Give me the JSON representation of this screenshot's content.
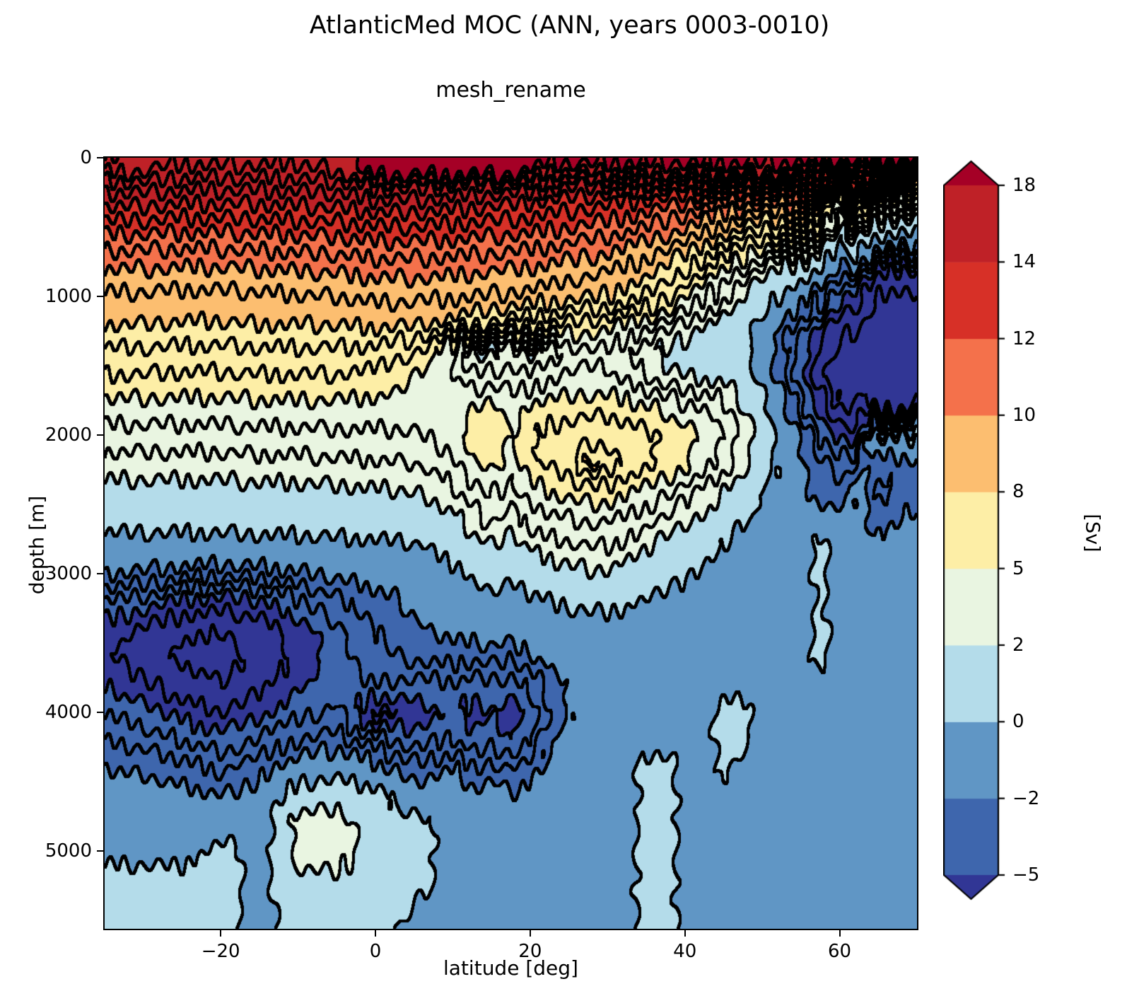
{
  "figure": {
    "title": "AtlanticMed MOC (ANN, years 0003-0010)",
    "subtitle": "mesh_rename",
    "background_color": "#ffffff"
  },
  "axes": {
    "x": {
      "label": "latitude [deg]",
      "min": -35,
      "max": 70,
      "tick_values": [
        -20,
        0,
        20,
        40,
        60
      ],
      "tick_labels": [
        "−20",
        "0",
        "20",
        "40",
        "60"
      ]
    },
    "y": {
      "label": "depth [m]",
      "min": 0,
      "max": 5560,
      "inverted": true,
      "tick_values": [
        0,
        1000,
        2000,
        3000,
        4000,
        5000
      ],
      "tick_labels": [
        "0",
        "1000",
        "2000",
        "3000",
        "4000",
        "5000"
      ]
    }
  },
  "colorbar": {
    "label": "[Sv]",
    "extend": "both",
    "levels": [
      -5,
      -2,
      0,
      2,
      5,
      8,
      10,
      12,
      14,
      18
    ],
    "tick_labels": [
      "−5",
      "−2",
      "0",
      "2",
      "5",
      "8",
      "10",
      "12",
      "14",
      "18"
    ],
    "band_colors": [
      "#3e66ad",
      "#6096c5",
      "#b4dcea",
      "#e9f5e1",
      "#fdeea6",
      "#fcbe70",
      "#f4714b",
      "#d73027",
      "#bf2127"
    ],
    "under_color": "#313695",
    "over_color": "#a50026",
    "outline_color": "#000000"
  },
  "chart_data": {
    "type": "heatmap",
    "subtype": "filled_contour",
    "title": "AtlanticMed MOC (ANN, years 0003-0010)",
    "subtitle": "mesh_rename",
    "xlabel": "latitude [deg]",
    "ylabel": "depth [m]",
    "units": "Sv",
    "xlim": [
      -35,
      70
    ],
    "ylim": [
      0,
      5560
    ],
    "fill_levels": [
      -5,
      -2,
      0,
      2,
      5,
      8,
      10,
      12,
      14,
      18
    ],
    "contour_line_levels": [
      -7,
      -6,
      -5,
      -4,
      -3,
      -2,
      0,
      2,
      3,
      4,
      5,
      6,
      7,
      8,
      9,
      10,
      11,
      12,
      13,
      14,
      15,
      16,
      17,
      18
    ],
    "contour_line_color": "#000000",
    "x_latitude": [
      -35,
      -30,
      -25,
      -20,
      -15,
      -10,
      -5,
      0,
      5,
      10,
      12.5,
      15,
      17.5,
      20,
      22.5,
      25,
      27.5,
      30,
      32.5,
      35,
      37.5,
      40,
      42.5,
      45,
      47.5,
      50,
      52.5,
      55,
      57.5,
      60,
      61.5,
      63,
      64.5,
      66,
      68,
      70
    ],
    "y_depth_m": [
      0,
      100,
      200,
      300,
      450,
      600,
      800,
      1000,
      1200,
      1400,
      1600,
      1800,
      2000,
      2200,
      2400,
      2600,
      2800,
      3000,
      3200,
      3400,
      3600,
      3800,
      4000,
      4200,
      4400,
      4600,
      4800,
      5000,
      5200,
      5560
    ],
    "values_sv": [
      [
        18.3,
        17.6,
        17.4,
        17.5,
        17.5,
        17.3,
        17.5,
        18.3,
        18.6,
        18.6,
        18.6,
        18.6,
        18.6,
        18.6,
        18.6,
        18.6,
        18.6,
        18.6,
        18.6,
        18.6,
        18.6,
        18.6,
        18.6,
        18.6,
        18.6,
        18.6,
        18.6,
        18.6,
        18.4,
        18.2,
        18.4,
        18.4,
        18.3,
        18.3,
        18.2,
        18.3
      ],
      [
        17,
        17,
        16.5,
        16.5,
        16.5,
        16.5,
        17,
        18.5,
        18.5,
        18.5,
        18.5,
        18.5,
        18.5,
        18,
        17,
        17,
        17,
        17,
        17,
        17,
        17,
        17,
        17,
        17,
        17,
        17,
        17,
        17,
        16,
        13,
        16,
        16,
        14,
        13.5,
        13,
        13.5
      ],
      [
        15.5,
        15.5,
        15.3,
        15.3,
        15.3,
        15.4,
        15.5,
        16.3,
        16.3,
        16,
        16,
        15.8,
        15.8,
        15.6,
        15.4,
        15.2,
        15,
        15,
        14.8,
        14.6,
        14.4,
        14.2,
        14,
        13.5,
        13.2,
        13,
        13.2,
        13.5,
        13,
        9,
        13,
        12.5,
        9.5,
        9,
        8.5,
        9
      ],
      [
        14.5,
        14.5,
        14.3,
        14.3,
        14.3,
        14.4,
        14.5,
        15,
        15,
        14.8,
        14.6,
        14.5,
        14.4,
        14.2,
        14,
        13.8,
        13.6,
        13.4,
        13.2,
        13,
        12.7,
        12.4,
        12,
        11.5,
        11,
        10.5,
        10.5,
        11,
        10,
        5,
        10,
        8,
        6,
        5.5,
        5,
        5.5
      ],
      [
        13,
        13,
        12.8,
        12.8,
        12.9,
        13,
        13.1,
        13.4,
        13.4,
        13.2,
        13.1,
        13,
        12.9,
        12.8,
        12.6,
        12.4,
        12.2,
        12,
        11.7,
        11.4,
        11,
        10.5,
        10,
        9.3,
        8.5,
        8,
        8,
        8.2,
        6.5,
        2,
        6,
        4.5,
        2.5,
        2,
        1.8,
        2
      ],
      [
        11.5,
        11.5,
        11.4,
        11.4,
        11.5,
        11.6,
        11.7,
        12,
        12,
        11.9,
        11.8,
        11.7,
        11.6,
        11.5,
        11.3,
        11.1,
        10.9,
        10.7,
        10.4,
        10,
        9.5,
        9,
        8.4,
        7.6,
        6.6,
        5.8,
        5.6,
        5.4,
        3.5,
        0,
        2.5,
        1,
        -0.5,
        -1,
        -1.2,
        -1
      ],
      [
        10,
        10,
        9.9,
        9.9,
        10,
        10.1,
        10.2,
        10.4,
        10.4,
        10.3,
        10.2,
        10.1,
        10,
        9.9,
        9.7,
        9.5,
        9.3,
        9.1,
        8.8,
        8.4,
        7.8,
        7,
        6,
        5,
        3.8,
        2.6,
        1.8,
        1,
        0,
        -2.5,
        -2,
        -3.5,
        -5.2,
        -5.8,
        -6,
        -5.8
      ],
      [
        8.8,
        8.8,
        8.7,
        8.7,
        8.8,
        8.9,
        9,
        9.2,
        9.2,
        9.1,
        9,
        8.9,
        8.8,
        8.7,
        8.5,
        8.3,
        8.1,
        7.9,
        7.5,
        7,
        6.2,
        5.2,
        4.2,
        3.2,
        2,
        0.8,
        -0.2,
        -1.2,
        -2.8,
        -5,
        -5,
        -6,
        -7,
        -7.3,
        -7.3,
        -7
      ],
      [
        8,
        8,
        7.9,
        7.9,
        8,
        8,
        8,
        8.2,
        8.1,
        7.6,
        7.2,
        6.8,
        6.5,
        6.2,
        6,
        5.8,
        5.6,
        5.4,
        5,
        4.4,
        3.6,
        2.8,
        2,
        1.4,
        0.6,
        -0.6,
        -2,
        -3.5,
        -5,
        -6.5,
        -6.8,
        -7,
        -7.4,
        -7.6,
        -7.6,
        -7.3
      ],
      [
        6.8,
        6.8,
        6.7,
        6.7,
        6.8,
        6.8,
        6.8,
        6.6,
        6,
        4,
        1.5,
        1.5,
        2.5,
        1.5,
        2.5,
        3.5,
        3.8,
        3.8,
        3,
        2.2,
        1.6,
        1.2,
        1,
        0.8,
        0.2,
        -1.2,
        -3,
        -4.8,
        -6.5,
        -7.5,
        -7.6,
        -7.6,
        -7.6,
        -7.8,
        -7.8,
        -7.4
      ],
      [
        5.8,
        5.8,
        5.7,
        5.7,
        5.8,
        5.8,
        5.8,
        5.6,
        5,
        4.2,
        3.5,
        3.8,
        3.5,
        3.5,
        4,
        4.2,
        4.2,
        4.2,
        3.8,
        3.2,
        2.6,
        2.2,
        2,
        1.8,
        1,
        -0.5,
        -2.5,
        -4.5,
        -6.8,
        -7.8,
        -7.8,
        -7.2,
        -7.5,
        -7.6,
        -7.6,
        -7.2
      ],
      [
        4.6,
        4.6,
        4.6,
        4.6,
        4.7,
        4.7,
        4.7,
        4.6,
        4.5,
        4.6,
        5,
        5.4,
        4.5,
        5.2,
        5.5,
        5.6,
        5.7,
        5.7,
        5.5,
        5.2,
        4.8,
        4.4,
        4,
        3.4,
        2.2,
        0.5,
        -1.5,
        -3.5,
        -5.5,
        -7,
        -7,
        -6.5,
        -7,
        -7.2,
        -7.2,
        -6.8
      ],
      [
        3.6,
        3.6,
        3.6,
        3.6,
        3.7,
        3.7,
        3.8,
        3.8,
        3.9,
        4.5,
        5.5,
        6,
        5,
        6,
        6.3,
        6.5,
        6.6,
        6.6,
        6.4,
        6.2,
        5.8,
        5.4,
        4.8,
        4,
        2.8,
        1.2,
        -0.5,
        -2.2,
        -4,
        -5.5,
        -5.8,
        -4,
        0.5,
        0.5,
        0.3,
        0.5
      ],
      [
        2.6,
        2.6,
        2.6,
        2.6,
        2.7,
        2.7,
        2.8,
        2.9,
        3,
        3.8,
        4.8,
        5.5,
        4.5,
        5.8,
        6.2,
        6.6,
        8.3,
        7.6,
        6.6,
        6.2,
        5.8,
        5.2,
        4.4,
        3.6,
        2.4,
        1,
        -0.4,
        -1.8,
        -2.8,
        -3.5,
        -3.2,
        -2,
        -2.6,
        -2.8,
        -2.6,
        -2.4
      ],
      [
        1.6,
        1.6,
        1.6,
        1.6,
        1.7,
        1.7,
        1.8,
        1.9,
        2,
        2.8,
        3.6,
        4.2,
        3.6,
        4.6,
        5,
        5.4,
        5.6,
        5.6,
        5.2,
        4.8,
        4.2,
        3.6,
        2.8,
        2,
        1,
        0,
        -1,
        -1.8,
        -2.2,
        -2.4,
        -2.2,
        -1.4,
        -3,
        -3.2,
        -2.8,
        -2.6
      ],
      [
        0.6,
        0.6,
        0.6,
        0.6,
        0.7,
        0.7,
        0.8,
        0.9,
        1,
        1.8,
        2.6,
        3.2,
        2.6,
        3.4,
        3.8,
        4,
        4.2,
        4.2,
        3.8,
        3.4,
        2.8,
        2.2,
        1.6,
        1,
        0.2,
        -0.6,
        -1.2,
        -1.6,
        -1.8,
        -1.8,
        -1.6,
        -1.2,
        -2.8,
        -2.6,
        -1.8,
        -1.6
      ],
      [
        -0.6,
        -0.6,
        -0.6,
        -0.6,
        -0.5,
        -0.5,
        -0.4,
        -0.3,
        -0.2,
        0.6,
        1.4,
        2,
        1.4,
        2.2,
        2.6,
        2.8,
        3,
        3,
        2.6,
        2.2,
        1.6,
        1,
        0.4,
        -0.2,
        -0.8,
        -1.2,
        -1.4,
        -1.5,
        0.7,
        -1.6,
        -1.4,
        -1.2,
        -1.8,
        -1.4,
        -1.3,
        -1.2
      ],
      [
        -2,
        -2.2,
        -2.6,
        -2.8,
        -2.6,
        -2.2,
        -1.8,
        -1.4,
        -1,
        -0.4,
        0.2,
        0.8,
        0.4,
        1,
        1.4,
        1.6,
        1.8,
        1.8,
        1.4,
        1,
        0.6,
        0.2,
        -0.2,
        -0.6,
        -1,
        -1.2,
        -1.3,
        -1.4,
        0.7,
        -1.5,
        -1.3,
        -1.2,
        -1.6,
        -1.2,
        -1.2,
        -1.1
      ],
      [
        -4,
        -4.5,
        -5.2,
        -5.5,
        -5.2,
        -4.2,
        -3.2,
        -2.4,
        -1.8,
        -1.2,
        -0.8,
        -0.4,
        -0.8,
        -0.4,
        0,
        0.2,
        0.4,
        0.4,
        0.2,
        -0.2,
        -0.4,
        -0.6,
        -0.8,
        -0.9,
        -1,
        -1.1,
        -1.2,
        -1.2,
        0.7,
        -1.4,
        -1.2,
        -1.1,
        -1.4,
        -1.1,
        -1.1,
        -1
      ],
      [
        -5.5,
        -6.2,
        -6.8,
        -7,
        -6.6,
        -5.5,
        -4.2,
        -3,
        -2.2,
        -1.6,
        -1.4,
        -1.2,
        -1.4,
        -1,
        -0.8,
        -0.7,
        -0.7,
        -0.7,
        -0.7,
        -0.7,
        -0.8,
        -0.9,
        -1,
        -1,
        -1,
        -1.1,
        -1.1,
        -1.1,
        0.7,
        -1.3,
        -1.2,
        -1,
        -1.3,
        -1,
        -1,
        -1
      ],
      [
        -5.8,
        -6.6,
        -7.2,
        -7.3,
        -6.8,
        -5.8,
        -4.5,
        -3.4,
        -2.8,
        -2.6,
        -2.8,
        -2.6,
        -2.8,
        -2.2,
        -1.6,
        -1.2,
        -1,
        -0.9,
        -0.9,
        -0.9,
        -0.9,
        -1,
        -1,
        -1,
        -1,
        -1,
        -1,
        -1,
        0.7,
        -1.2,
        -1.1,
        -1,
        -1.2,
        -1,
        -1,
        -0.9
      ],
      [
        -5,
        -5.8,
        -6.6,
        -7,
        -6.4,
        -5.2,
        -4.2,
        -4,
        -4.4,
        -4.2,
        -4.6,
        -4.2,
        -4.6,
        -3.6,
        -2.6,
        -1.8,
        -1.2,
        -1,
        -0.9,
        -0.9,
        -0.9,
        -0.9,
        -0.9,
        -0.9,
        -0.9,
        -0.9,
        -0.9,
        -0.9,
        -0.9,
        -1.1,
        -1,
        -0.9,
        -1.1,
        -0.9,
        -0.9,
        -0.9
      ],
      [
        -4,
        -4.6,
        -5.4,
        -6,
        -5.2,
        -4.2,
        -3.8,
        -6.5,
        -5.5,
        -4.8,
        -5.4,
        -5,
        -5.6,
        -4.6,
        -3,
        -2,
        -1.2,
        -1,
        -0.9,
        -0.8,
        -0.8,
        -0.8,
        -0.8,
        0.7,
        0.7,
        -0.9,
        -0.9,
        -0.9,
        -0.9,
        -1,
        -0.9,
        -0.9,
        -1,
        -0.9,
        -0.9,
        -0.8
      ],
      [
        -3,
        -3.4,
        -4,
        -4.6,
        -3.8,
        -3,
        -2.6,
        -3.6,
        -4.6,
        -3.8,
        -4.8,
        -4.4,
        -5,
        -4,
        -2.4,
        -1.4,
        -1,
        -0.9,
        -0.8,
        -0.8,
        -0.8,
        -0.75,
        -0.75,
        0.7,
        0.7,
        -0.8,
        -0.8,
        -0.8,
        -0.8,
        -0.9,
        -0.8,
        -0.8,
        -0.9,
        -0.8,
        -0.8,
        -0.75
      ],
      [
        -2,
        -2.2,
        -2.6,
        -3.2,
        -2.4,
        -1.2,
        -0.7,
        -1.6,
        -2.6,
        -2,
        -3,
        -2.6,
        -3.2,
        -2.4,
        -1.6,
        -1,
        -0.9,
        -0.85,
        -0.8,
        0.8,
        0.8,
        -0.75,
        -0.75,
        0.5,
        -0.7,
        -0.8,
        -0.8,
        -0.8,
        -0.8,
        -0.8,
        -0.8,
        -0.75,
        -0.8,
        -0.8,
        -0.75,
        -0.7
      ],
      [
        -1.2,
        -1.4,
        -1.6,
        -2,
        -1.4,
        1,
        1.3,
        0.6,
        -1.4,
        -1,
        -1.6,
        -1.4,
        -1.8,
        -1.4,
        -1,
        -0.9,
        -0.85,
        -0.8,
        -0.8,
        0.8,
        0.8,
        -0.75,
        -0.75,
        -0.75,
        -0.75,
        -0.75,
        -0.75,
        -0.75,
        -0.75,
        -0.8,
        -0.75,
        -0.75,
        -0.8,
        -0.75,
        -0.75,
        -0.7
      ],
      [
        -0.9,
        -1,
        -1.1,
        -1.2,
        -0.95,
        2.6,
        2.8,
        0.9,
        0.8,
        -0.85,
        -1,
        -0.9,
        -1.1,
        -0.9,
        -0.85,
        -0.8,
        -0.8,
        -0.75,
        -0.75,
        0.8,
        0.8,
        -0.7,
        -0.7,
        -0.7,
        -0.7,
        -0.7,
        -0.7,
        -0.7,
        -0.7,
        -0.75,
        -0.7,
        -0.7,
        -0.75,
        -0.7,
        -0.7,
        -0.7
      ],
      [
        -0.8,
        -0.85,
        -0.9,
        0.8,
        -0.8,
        2.8,
        3,
        0.9,
        0.8,
        -0.8,
        -0.9,
        -0.8,
        -0.9,
        -0.8,
        -0.8,
        -0.75,
        -0.75,
        -0.7,
        -0.7,
        0.8,
        0.8,
        -0.7,
        -0.7,
        -0.7,
        -0.7,
        -0.7,
        -0.7,
        -0.7,
        -0.7,
        -0.7,
        -0.7,
        -0.7,
        -0.7,
        -0.7,
        -0.7,
        -0.7
      ],
      [
        0.9,
        0.9,
        0.8,
        0.8,
        -0.75,
        1.6,
        1.6,
        0.8,
        0.7,
        -0.75,
        -0.8,
        -0.75,
        -0.8,
        -0.75,
        -0.75,
        -0.7,
        -0.7,
        -0.7,
        -0.7,
        0.8,
        0.8,
        -0.7,
        -0.7,
        -0.7,
        -0.7,
        -0.7,
        -0.7,
        -0.7,
        -0.7,
        -0.7,
        -0.7,
        -0.7,
        -0.7,
        -0.7,
        -0.7,
        -0.7
      ],
      [
        0.9,
        0.9,
        0.8,
        0.8,
        -0.75,
        0.9,
        0.9,
        0.7,
        -0.7,
        -0.75,
        -0.8,
        -0.75,
        -0.8,
        -0.75,
        -0.7,
        -0.7,
        -0.7,
        -0.7,
        -0.7,
        0.8,
        0.8,
        -0.7,
        -0.7,
        -0.7,
        -0.7,
        -0.7,
        -0.7,
        -0.7,
        -0.7,
        -0.7,
        -0.7,
        -0.7,
        -0.7,
        -0.7,
        -0.7,
        -0.7
      ]
    ]
  }
}
